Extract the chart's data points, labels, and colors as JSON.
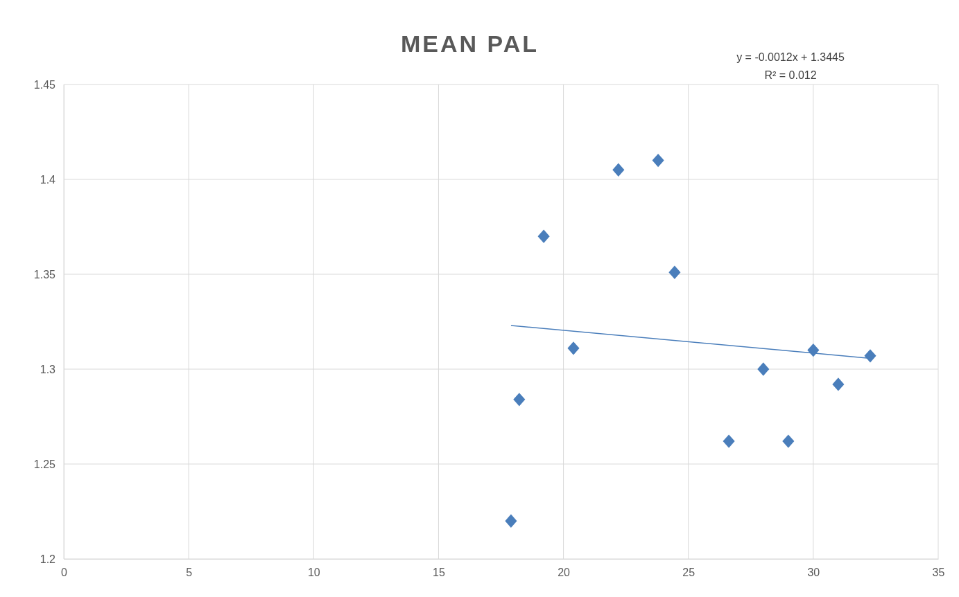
{
  "chart_data": {
    "type": "scatter",
    "title": "MEAN PAL",
    "marker": "diamond",
    "grid": true,
    "xlim": [
      0,
      35
    ],
    "xticks": [
      0,
      5,
      10,
      15,
      20,
      25,
      30,
      35
    ],
    "ylim": [
      1.2,
      1.45
    ],
    "yticks": [
      1.2,
      1.25,
      1.3,
      1.35,
      1.4,
      1.45
    ],
    "annotations": [
      "y = -0.0012x + 1.3445",
      "R² = 0.012"
    ],
    "series": [
      {
        "color": "#4a7ebb",
        "x": [
          17.9,
          18.23,
          19.21,
          20.4,
          22.2,
          23.79,
          24.45,
          26.62,
          28.0,
          29.0,
          30.0,
          31.0,
          32.28
        ],
        "values": [
          1.22,
          1.284,
          1.37,
          1.311,
          1.405,
          1.41,
          1.351,
          1.262,
          1.3,
          1.262,
          1.31,
          1.292,
          1.307
        ]
      },
      {
        "type": "line",
        "marker": "none",
        "color": "#4a7ebb",
        "x": [
          17.9,
          32.3
        ],
        "values": [
          1.323,
          1.3057
        ]
      }
    ]
  }
}
